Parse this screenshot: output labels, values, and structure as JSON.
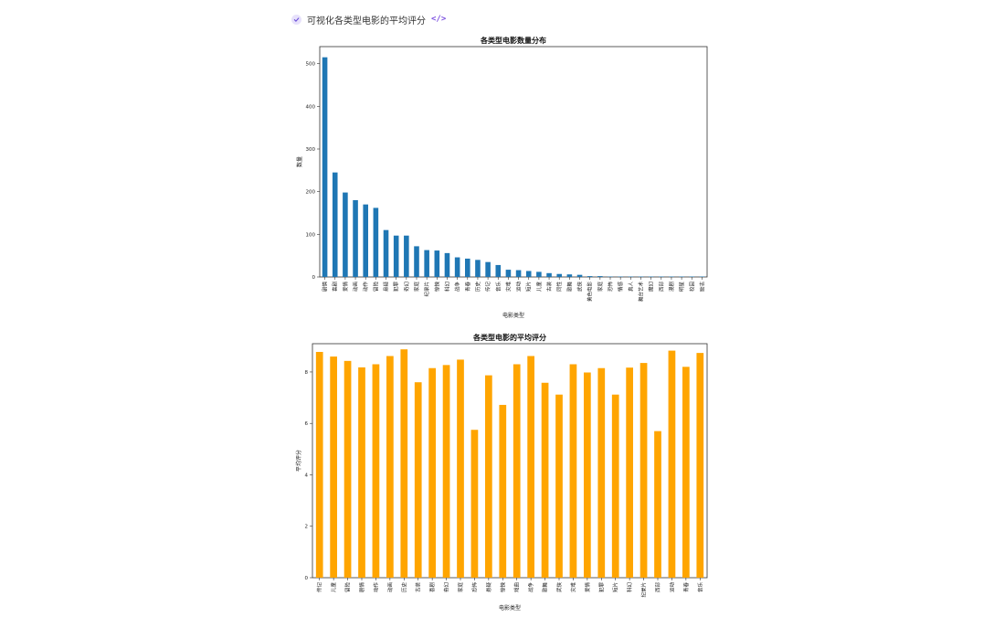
{
  "step": {
    "label": "可视化各类型电影的平均评分",
    "check_icon": "check-icon",
    "code_icon": "code-icon",
    "code_glyph": "</>"
  },
  "chart_data": [
    {
      "type": "bar",
      "title": "各类型电影数量分布",
      "xlabel": "电影类型",
      "ylabel": "数量",
      "ylim": [
        0,
        540
      ],
      "yticks": [
        0,
        100,
        200,
        300,
        400,
        500
      ],
      "color": "#1f77b4",
      "grid": false,
      "categories": [
        "剧情",
        "喜剧",
        "爱情",
        "动画",
        "动作",
        "冒险",
        "悬疑",
        "犯罪",
        "奇幻",
        "家庭",
        "纪录片",
        "惊悚",
        "科幻",
        "战争",
        "青春",
        "历史",
        "传记",
        "音乐",
        "灾难",
        "运动",
        "短片",
        "儿童",
        "古装",
        "同性",
        "歌舞",
        "武侠",
        "黄色电影",
        "家庭",
        "恐怖",
        "情感",
        "真人",
        "舞台艺术",
        "魔幻",
        "西部",
        "漫剧",
        "明星",
        "校园",
        "励志"
      ],
      "values": [
        515,
        245,
        198,
        180,
        170,
        162,
        110,
        97,
        97,
        72,
        63,
        62,
        56,
        46,
        43,
        40,
        35,
        28,
        17,
        16,
        14,
        12,
        9,
        7,
        6,
        5,
        2,
        2,
        1,
        1,
        1,
        1,
        1,
        1,
        1,
        1,
        1,
        1
      ]
    },
    {
      "type": "bar",
      "title": "各类型电影的平均评分",
      "xlabel": "电影类型",
      "ylabel": "平均评分",
      "ylim": [
        0,
        9.1
      ],
      "yticks": [
        0,
        2,
        4,
        6,
        8
      ],
      "color": "#ffa500",
      "grid": false,
      "categories": [
        "传记",
        "儿童",
        "冒险",
        "剧情",
        "动作",
        "动画",
        "历史",
        "古装",
        "喜剧",
        "奇幻",
        "家庭",
        "恐怖",
        "悬疑",
        "惊悚",
        "戏曲",
        "战争",
        "歌舞",
        "武侠",
        "灾难",
        "爱情",
        "犯罪",
        "短片",
        "科幻",
        "纪录片",
        "西部",
        "运动",
        "青春",
        "音乐"
      ],
      "values": [
        8.78,
        8.6,
        8.43,
        8.18,
        8.3,
        8.62,
        8.88,
        7.6,
        8.15,
        8.27,
        8.48,
        5.75,
        7.87,
        6.72,
        8.3,
        8.62,
        7.58,
        7.12,
        8.3,
        7.98,
        8.15,
        7.12,
        8.17,
        8.35,
        5.7,
        8.83,
        8.2,
        8.74
      ]
    }
  ]
}
